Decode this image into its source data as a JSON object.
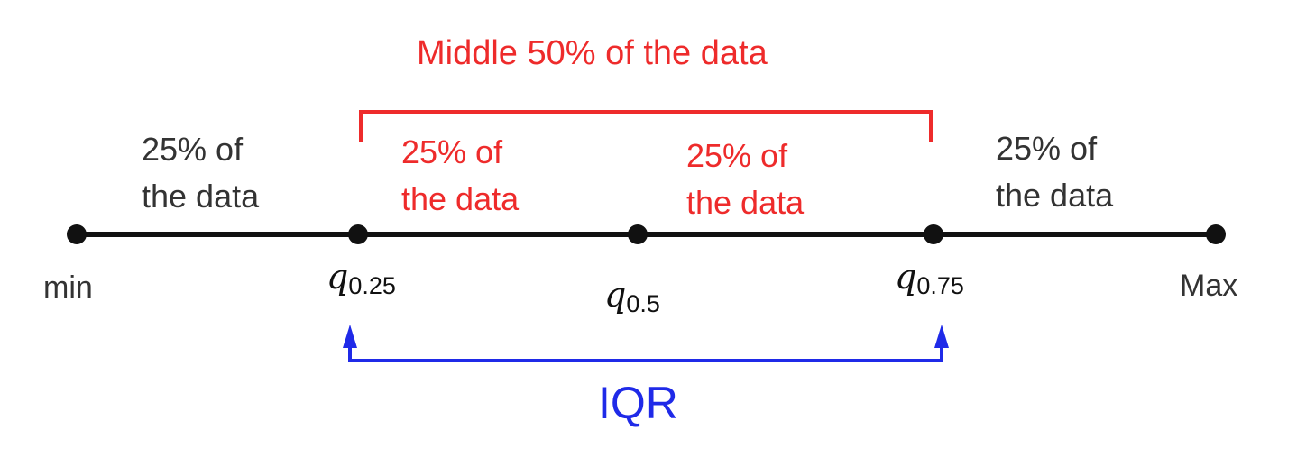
{
  "top_bracket": {
    "label": "Middle 50% of the data",
    "color": "#ee2b2b"
  },
  "segments": [
    {
      "line1": "25% of",
      "line2": "the data",
      "color": "#333333"
    },
    {
      "line1": "25% of",
      "line2": "the data",
      "color": "#ee2b2b"
    },
    {
      "line1": "25% of",
      "line2": "the data",
      "color": "#ee2b2b"
    },
    {
      "line1": "25% of",
      "line2": "the data",
      "color": "#333333"
    }
  ],
  "points": {
    "min": "min",
    "q25": {
      "symbol": "q",
      "sub": "0.25"
    },
    "q50": {
      "symbol": "q",
      "sub": "0.5"
    },
    "q75": {
      "symbol": "q",
      "sub": "0.75"
    },
    "max": "Max"
  },
  "iqr": {
    "label": "IQR",
    "color": "#1f2ae8"
  },
  "colors": {
    "axis": "#111111",
    "red": "#ee2b2b",
    "blue": "#1f2ae8"
  }
}
